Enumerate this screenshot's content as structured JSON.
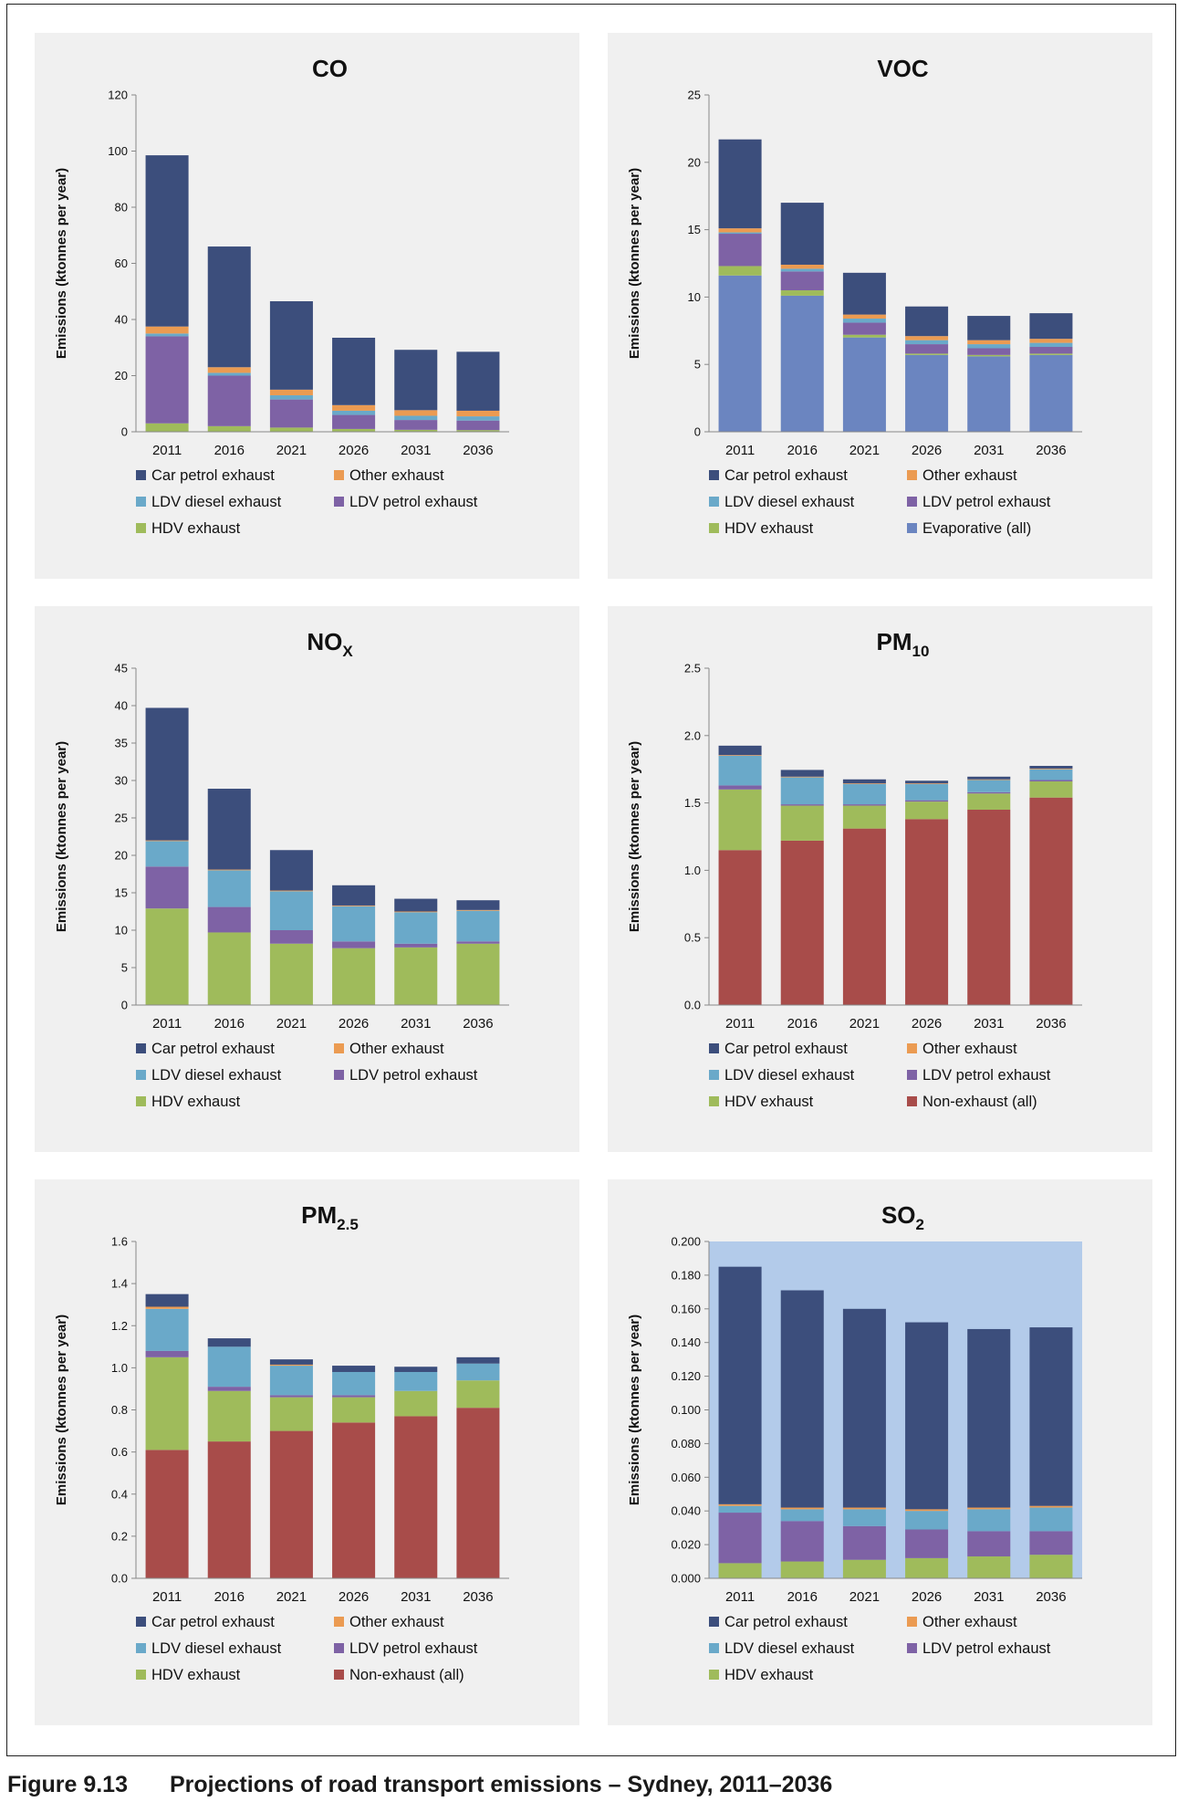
{
  "figure": {
    "number": "Figure 9.13",
    "title": "Projections of road transport emissions – Sydney, 2011–2036"
  },
  "colors": {
    "car_petrol_exhaust": "#3c4e7c",
    "other_exhaust": "#eb9b52",
    "ldv_diesel_exhaust": "#6aa9c9",
    "ldv_petrol_exhaust": "#7e62a5",
    "hdv_exhaust": "#9fbb5b",
    "evaporative": "#6b85c0",
    "non_exhaust": "#a84c4a",
    "panel_bg": "#f0f0f0",
    "so2_plot_bg": "#b3cbea"
  },
  "chart_data": [
    {
      "type": "bar",
      "stacked": true,
      "title": "CO",
      "title_sub": "",
      "ylabel": "Emissions (ktonnes per year)",
      "ylim": [
        0,
        120
      ],
      "yticks": [
        "0",
        "20",
        "40",
        "60",
        "80",
        "100",
        "120"
      ],
      "categories": [
        "2011",
        "2016",
        "2021",
        "2026",
        "2031",
        "2036"
      ],
      "series": [
        {
          "name": "HDV exhaust",
          "color": "#9fbb5b",
          "values": [
            3,
            2,
            1.5,
            1,
            0.7,
            0.6
          ]
        },
        {
          "name": "LDV petrol exhaust",
          "color": "#7e62a5",
          "values": [
            31,
            18,
            10,
            5,
            3.5,
            3.4
          ]
        },
        {
          "name": "LDV diesel exhaust",
          "color": "#6aa9c9",
          "values": [
            1,
            1,
            1.5,
            1.5,
            1.5,
            1.5
          ]
        },
        {
          "name": "Other exhaust",
          "color": "#eb9b52",
          "values": [
            2.5,
            2,
            2,
            2,
            2,
            2
          ]
        },
        {
          "name": "Car petrol exhaust",
          "color": "#3c4e7c",
          "values": [
            61,
            43,
            31.5,
            24,
            21.5,
            21
          ]
        }
      ],
      "legend": [
        "Car petrol exhaust",
        "Other exhaust",
        "LDV diesel exhaust",
        "LDV petrol exhaust",
        "HDV exhaust"
      ],
      "legend_colors": [
        "#3c4e7c",
        "#eb9b52",
        "#6aa9c9",
        "#7e62a5",
        "#9fbb5b"
      ]
    },
    {
      "type": "bar",
      "stacked": true,
      "title": "VOC",
      "title_sub": "",
      "ylabel": "Emissions (ktonnes per year)",
      "ylim": [
        0,
        25
      ],
      "yticks": [
        "0",
        "5",
        "10",
        "15",
        "20",
        "25"
      ],
      "categories": [
        "2011",
        "2016",
        "2021",
        "2026",
        "2031",
        "2036"
      ],
      "series": [
        {
          "name": "Evaporative (all)",
          "color": "#6b85c0",
          "values": [
            11.6,
            10.1,
            7.0,
            5.7,
            5.6,
            5.7
          ]
        },
        {
          "name": "HDV exhaust",
          "color": "#9fbb5b",
          "values": [
            0.7,
            0.4,
            0.2,
            0.1,
            0.1,
            0.1
          ]
        },
        {
          "name": "LDV petrol exhaust",
          "color": "#7e62a5",
          "values": [
            2.4,
            1.4,
            0.9,
            0.7,
            0.5,
            0.5
          ]
        },
        {
          "name": "LDV diesel exhaust",
          "color": "#6aa9c9",
          "values": [
            0.1,
            0.2,
            0.3,
            0.3,
            0.3,
            0.3
          ]
        },
        {
          "name": "Other exhaust",
          "color": "#eb9b52",
          "values": [
            0.3,
            0.3,
            0.3,
            0.3,
            0.3,
            0.3
          ]
        },
        {
          "name": "Car petrol exhaust",
          "color": "#3c4e7c",
          "values": [
            6.6,
            4.6,
            3.1,
            2.2,
            1.8,
            1.9
          ]
        }
      ],
      "legend": [
        "Car petrol exhaust",
        "Other exhaust",
        "LDV diesel exhaust",
        "LDV petrol exhaust",
        "HDV exhaust",
        "Evaporative (all)"
      ],
      "legend_colors": [
        "#3c4e7c",
        "#eb9b52",
        "#6aa9c9",
        "#7e62a5",
        "#9fbb5b",
        "#6b85c0"
      ]
    },
    {
      "type": "bar",
      "stacked": true,
      "title": "NO",
      "title_sub": "X",
      "ylabel": "Emissions (ktonnes per year)",
      "ylim": [
        0,
        45
      ],
      "yticks": [
        "0",
        "5",
        "10",
        "15",
        "20",
        "25",
        "30",
        "35",
        "40",
        "45"
      ],
      "categories": [
        "2011",
        "2016",
        "2021",
        "2026",
        "2031",
        "2036"
      ],
      "series": [
        {
          "name": "HDV exhaust",
          "color": "#9fbb5b",
          "values": [
            12.9,
            9.7,
            8.2,
            7.6,
            7.7,
            8.2
          ]
        },
        {
          "name": "LDV petrol exhaust",
          "color": "#7e62a5",
          "values": [
            5.6,
            3.4,
            1.8,
            0.9,
            0.5,
            0.3
          ]
        },
        {
          "name": "LDV diesel exhaust",
          "color": "#6aa9c9",
          "values": [
            3.4,
            4.9,
            5.2,
            4.7,
            4.2,
            4.1
          ]
        },
        {
          "name": "Other exhaust",
          "color": "#eb9b52",
          "values": [
            0.1,
            0.1,
            0.1,
            0.1,
            0.1,
            0.1
          ]
        },
        {
          "name": "Car petrol exhaust",
          "color": "#3c4e7c",
          "values": [
            17.7,
            10.8,
            5.4,
            2.7,
            1.7,
            1.3
          ]
        }
      ],
      "legend": [
        "Car petrol exhaust",
        "Other exhaust",
        "LDV diesel exhaust",
        "LDV petrol exhaust",
        "HDV exhaust"
      ],
      "legend_colors": [
        "#3c4e7c",
        "#eb9b52",
        "#6aa9c9",
        "#7e62a5",
        "#9fbb5b"
      ]
    },
    {
      "type": "bar",
      "stacked": true,
      "title": "PM",
      "title_sub": "10",
      "ylabel": "Emissions (ktonnes per year)",
      "ylim": [
        0,
        2.5
      ],
      "yticks": [
        "0.0",
        "0.5",
        "1.0",
        "1.5",
        "2.0",
        "2.5"
      ],
      "categories": [
        "2011",
        "2016",
        "2021",
        "2026",
        "2031",
        "2036"
      ],
      "series": [
        {
          "name": "Non-exhaust (all)",
          "color": "#a84c4a",
          "values": [
            1.15,
            1.22,
            1.31,
            1.38,
            1.45,
            1.54
          ]
        },
        {
          "name": "HDV exhaust",
          "color": "#9fbb5b",
          "values": [
            0.45,
            0.26,
            0.17,
            0.13,
            0.12,
            0.12
          ]
        },
        {
          "name": "LDV petrol exhaust",
          "color": "#7e62a5",
          "values": [
            0.03,
            0.01,
            0.01,
            0.01,
            0.01,
            0.01
          ]
        },
        {
          "name": "LDV diesel exhaust",
          "color": "#6aa9c9",
          "values": [
            0.22,
            0.2,
            0.15,
            0.12,
            0.09,
            0.08
          ]
        },
        {
          "name": "Other exhaust",
          "color": "#eb9b52",
          "values": [
            0.005,
            0.005,
            0.005,
            0.005,
            0.005,
            0.005
          ]
        },
        {
          "name": "Car petrol exhaust",
          "color": "#3c4e7c",
          "values": [
            0.07,
            0.05,
            0.03,
            0.02,
            0.02,
            0.02
          ]
        }
      ],
      "legend": [
        "Car petrol exhaust",
        "Other exhaust",
        "LDV diesel exhaust",
        "LDV petrol exhaust",
        "HDV exhaust",
        "Non-exhaust (all)"
      ],
      "legend_colors": [
        "#3c4e7c",
        "#eb9b52",
        "#6aa9c9",
        "#7e62a5",
        "#9fbb5b",
        "#a84c4a"
      ]
    },
    {
      "type": "bar",
      "stacked": true,
      "title": "PM",
      "title_sub": "2.5",
      "ylabel": "Emissions (ktonnes per year)",
      "ylim": [
        0,
        1.6
      ],
      "yticks": [
        "0.0",
        "0.2",
        "0.4",
        "0.6",
        "0.8",
        "1.0",
        "1.2",
        "1.4",
        "1.6"
      ],
      "categories": [
        "2011",
        "2016",
        "2021",
        "2026",
        "2031",
        "2036"
      ],
      "series": [
        {
          "name": "Non-exhaust (all)",
          "color": "#a84c4a",
          "values": [
            0.61,
            0.65,
            0.7,
            0.74,
            0.77,
            0.81
          ]
        },
        {
          "name": "HDV exhaust",
          "color": "#9fbb5b",
          "values": [
            0.44,
            0.24,
            0.16,
            0.12,
            0.12,
            0.13
          ]
        },
        {
          "name": "LDV petrol exhaust",
          "color": "#7e62a5",
          "values": [
            0.03,
            0.02,
            0.01,
            0.01,
            0.0,
            0.0
          ]
        },
        {
          "name": "LDV diesel exhaust",
          "color": "#6aa9c9",
          "values": [
            0.2,
            0.19,
            0.14,
            0.11,
            0.09,
            0.08
          ]
        },
        {
          "name": "Other exhaust",
          "color": "#eb9b52",
          "values": [
            0.01,
            0.0,
            0.005,
            0.0,
            0.0,
            0.0
          ]
        },
        {
          "name": "Car petrol exhaust",
          "color": "#3c4e7c",
          "values": [
            0.06,
            0.04,
            0.025,
            0.03,
            0.025,
            0.03
          ]
        }
      ],
      "legend": [
        "Car petrol exhaust",
        "Other exhaust",
        "LDV diesel exhaust",
        "LDV petrol exhaust",
        "HDV exhaust",
        "Non-exhaust (all)"
      ],
      "legend_colors": [
        "#3c4e7c",
        "#eb9b52",
        "#6aa9c9",
        "#7e62a5",
        "#9fbb5b",
        "#a84c4a"
      ]
    },
    {
      "type": "bar",
      "stacked": true,
      "title": "SO",
      "title_sub": "2",
      "ylabel": "Emissions (ktonnes per year)",
      "ylim": [
        0,
        0.2
      ],
      "yticks": [
        "0.000",
        "0.020",
        "0.040",
        "0.060",
        "0.080",
        "0.100",
        "0.120",
        "0.140",
        "0.160",
        "0.180",
        "0.200"
      ],
      "categories": [
        "2011",
        "2016",
        "2021",
        "2026",
        "2031",
        "2036"
      ],
      "plot_background": "#b3cbea",
      "series": [
        {
          "name": "HDV exhaust",
          "color": "#9fbb5b",
          "values": [
            0.009,
            0.01,
            0.011,
            0.012,
            0.013,
            0.014
          ]
        },
        {
          "name": "LDV petrol exhaust",
          "color": "#7e62a5",
          "values": [
            0.03,
            0.024,
            0.02,
            0.017,
            0.015,
            0.014
          ]
        },
        {
          "name": "LDV diesel exhaust",
          "color": "#6aa9c9",
          "values": [
            0.004,
            0.007,
            0.01,
            0.011,
            0.013,
            0.014
          ]
        },
        {
          "name": "Other exhaust",
          "color": "#eb9b52",
          "values": [
            0.001,
            0.001,
            0.001,
            0.001,
            0.001,
            0.001
          ]
        },
        {
          "name": "Car petrol exhaust",
          "color": "#3c4e7c",
          "values": [
            0.141,
            0.129,
            0.118,
            0.111,
            0.106,
            0.106
          ]
        }
      ],
      "legend": [
        "Car petrol exhaust",
        "Other exhaust",
        "LDV diesel exhaust",
        "LDV petrol exhaust",
        "HDV exhaust"
      ],
      "legend_colors": [
        "#3c4e7c",
        "#eb9b52",
        "#6aa9c9",
        "#7e62a5",
        "#9fbb5b"
      ]
    }
  ]
}
